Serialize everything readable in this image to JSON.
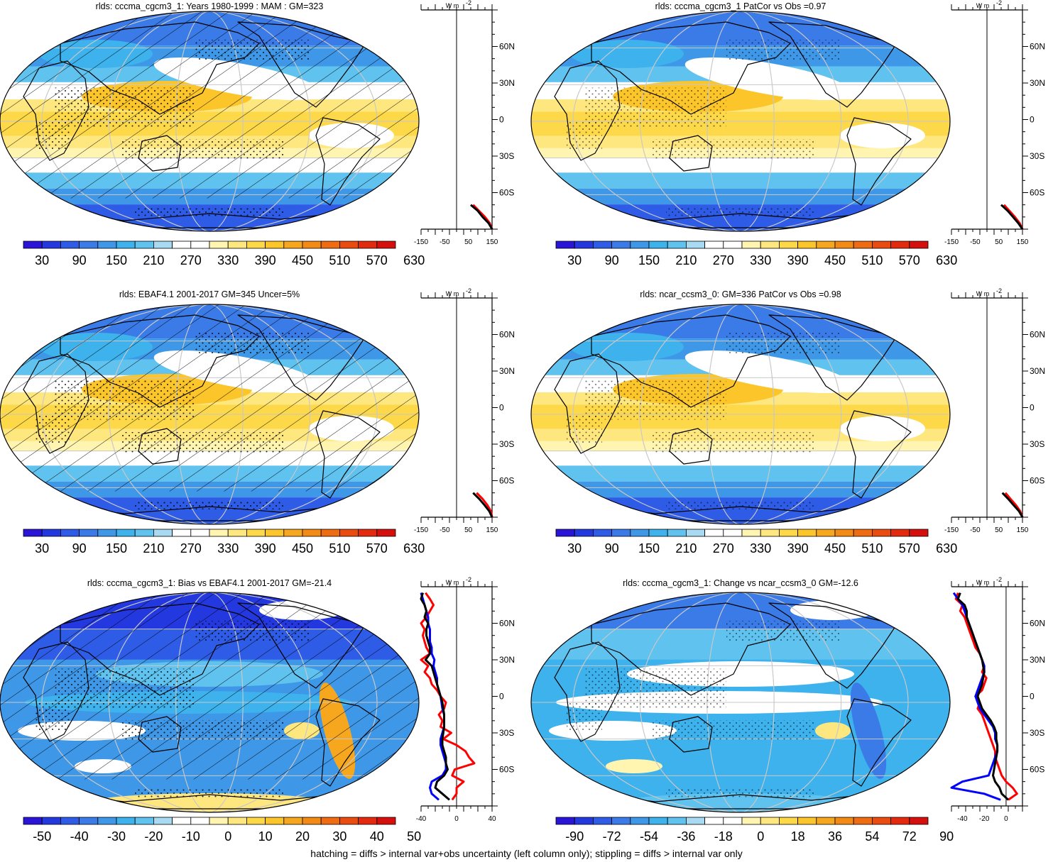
{
  "footer": "hatching = diffs > internal var+obs uncertainty (left column only); stippling = diffs > internal var only",
  "palette": {
    "abs": [
      "#2a14d8",
      "#2438e0",
      "#2e5ce6",
      "#3a7be8",
      "#3f97e8",
      "#3db2ec",
      "#60c2ee",
      "#a8daf2",
      "#ffffff",
      "#ffffff",
      "#fff4b0",
      "#ffe780",
      "#fdd94a",
      "#fcc52a",
      "#f7a71e",
      "#f38a16",
      "#ef6c12",
      "#ea4c10",
      "#e42a0e",
      "#d40f0c"
    ],
    "bias": [
      "#2a14d8",
      "#2438e0",
      "#2e5ce6",
      "#3a7be8",
      "#3f97e8",
      "#3db2ec",
      "#60c2ee",
      "#a8daf2",
      "#ffffff",
      "#ffffff",
      "#fff4b0",
      "#ffe780",
      "#fdd94a",
      "#fcc52a",
      "#f7a71e",
      "#f38a16",
      "#ef6c12",
      "#ea4c10",
      "#e42a0e",
      "#d40f0c"
    ]
  },
  "panels": [
    {
      "title": "rlds: cccma_cgcm3_1: Years 1980-1999 : MAM : GM=323",
      "pattern": "abs",
      "hatch": true,
      "stipple": "heavy",
      "colorbar_labels": [
        "30",
        "90",
        "150",
        "210",
        "270",
        "330",
        "390",
        "450",
        "510",
        "570",
        "630"
      ],
      "profile_ticks": [
        "-150",
        "-50",
        "50",
        "150"
      ],
      "profile_unit": "W m",
      "profile_unit_exp": "-2",
      "lat_labels": [
        "60N",
        "30N",
        "0",
        "30S",
        "60S"
      ],
      "chart_data": {
        "type": "line",
        "xlim": [
          -150,
          150
        ],
        "ylabel": "",
        "series": [
          {
            "color": "#ff0000",
            "lat": [
              -90,
              -85,
              -80,
              -75,
              -70
            ],
            "values": [
              150,
              140,
              120,
              95,
              70
            ]
          },
          {
            "color": "#000000",
            "lat": [
              -90,
              -85,
              -80,
              -75,
              -70
            ],
            "values": [
              150,
              135,
              110,
              90,
              60
            ]
          }
        ]
      }
    },
    {
      "title": "rlds: cccma_cgcm3_1 PatCor vs Obs =0.97",
      "pattern": "abs",
      "hatch": false,
      "stipple": "light",
      "colorbar_labels": [
        "30",
        "90",
        "150",
        "210",
        "270",
        "330",
        "390",
        "450",
        "510",
        "570",
        "630"
      ],
      "profile_ticks": [
        "-150",
        "-50",
        "50",
        "150"
      ],
      "profile_unit": "W m",
      "profile_unit_exp": "-2",
      "lat_labels": [
        "60N",
        "30N",
        "0",
        "30S",
        "60S"
      ],
      "chart_data": {
        "type": "line",
        "xlim": [
          -150,
          150
        ],
        "series": [
          {
            "color": "#ff0000",
            "lat": [
              -90,
              -85,
              -80,
              -75,
              -70
            ],
            "values": [
              150,
              138,
              118,
              95,
              72
            ]
          },
          {
            "color": "#000000",
            "lat": [
              -90,
              -85,
              -80,
              -75,
              -70
            ],
            "values": [
              150,
              132,
              110,
              88,
              60
            ]
          }
        ]
      }
    },
    {
      "title": "rlds: EBAF4.1 2001-2017 GM=345 Uncer=5%",
      "pattern": "abs",
      "hatch": true,
      "stipple": "heavy",
      "colorbar_labels": [
        "30",
        "90",
        "150",
        "210",
        "270",
        "330",
        "390",
        "450",
        "510",
        "570",
        "630"
      ],
      "profile_ticks": [
        "-150",
        "-50",
        "50",
        "150"
      ],
      "profile_unit": "W m",
      "profile_unit_exp": "-2",
      "lat_labels": [
        "60N",
        "30N",
        "0",
        "30S",
        "60S"
      ],
      "chart_data": {
        "type": "line",
        "xlim": [
          -150,
          150
        ],
        "series": [
          {
            "color": "#ff0000",
            "lat": [
              -90,
              -85,
              -80,
              -75,
              -70
            ],
            "values": [
              150,
              145,
              130,
              110,
              85
            ]
          },
          {
            "color": "#000000",
            "lat": [
              -90,
              -85,
              -80,
              -75,
              -70
            ],
            "values": [
              150,
              138,
              118,
              96,
              70
            ]
          }
        ]
      }
    },
    {
      "title": "rlds: ncar_ccsm3_0: GM=336 PatCor vs Obs =0.98",
      "pattern": "abs",
      "hatch": false,
      "stipple": "light",
      "colorbar_labels": [
        "30",
        "90",
        "150",
        "210",
        "270",
        "330",
        "390",
        "450",
        "510",
        "570",
        "630"
      ],
      "profile_ticks": [
        "-150",
        "-50",
        "50",
        "150"
      ],
      "profile_unit": "W m",
      "profile_unit_exp": "-2",
      "lat_labels": [
        "60N",
        "30N",
        "0",
        "30S",
        "60S"
      ],
      "chart_data": {
        "type": "line",
        "xlim": [
          -150,
          150
        ],
        "series": [
          {
            "color": "#ff0000",
            "lat": [
              -90,
              -85,
              -80,
              -75,
              -70
            ],
            "values": [
              150,
              140,
              122,
              100,
              78
            ]
          },
          {
            "color": "#000000",
            "lat": [
              -90,
              -85,
              -80,
              -75,
              -70
            ],
            "values": [
              150,
              135,
              112,
              90,
              65
            ]
          }
        ]
      }
    },
    {
      "title": "rlds: cccma_cgcm3_1: Bias vs EBAF4.1 2001-2017 GM=-21.4",
      "pattern": "bias",
      "hatch": true,
      "stipple": "heavy",
      "colorbar_labels": [
        "-50",
        "-40",
        "-30",
        "-20",
        "-10",
        "0",
        "10",
        "20",
        "30",
        "40",
        "50"
      ],
      "profile_ticks": [
        "-40",
        "0",
        "40"
      ],
      "profile_unit": "W m",
      "profile_unit_exp": "-2",
      "lat_labels": [
        "60N",
        "30N",
        "0",
        "30S",
        "60S"
      ],
      "chart_data": {
        "type": "line",
        "xlim": [
          -40,
          40
        ],
        "series": [
          {
            "color": "#ff0000",
            "lat": [
              85,
              80,
              75,
              70,
              65,
              60,
              55,
              50,
              45,
              40,
              35,
              30,
              25,
              20,
              15,
              10,
              5,
              0,
              -5,
              -10,
              -15,
              -20,
              -25,
              -30,
              -35,
              -40,
              -45,
              -50,
              -55,
              -60,
              -65,
              -70,
              -75,
              -80,
              -85
            ],
            "values": [
              -35,
              -30,
              -26,
              -30,
              -34,
              -40,
              -36,
              -38,
              -36,
              -34,
              -30,
              -40,
              -32,
              -36,
              -30,
              -28,
              -22,
              -18,
              -12,
              -14,
              -20,
              -16,
              -18,
              -6,
              -15,
              0,
              10,
              14,
              20,
              -2,
              -5,
              8,
              0,
              0,
              -5
            ]
          },
          {
            "color": "#0000ff",
            "lat": [
              85,
              80,
              75,
              70,
              65,
              60,
              55,
              50,
              45,
              40,
              35,
              30,
              25,
              20,
              15,
              10,
              5,
              0,
              -5,
              -10,
              -15,
              -20,
              -25,
              -30,
              -35,
              -40,
              -45,
              -50,
              -55,
              -60,
              -65,
              -70,
              -75,
              -80,
              -85
            ],
            "values": [
              -40,
              -38,
              -36,
              -34,
              -32,
              -32,
              -30,
              -30,
              -30,
              -28,
              -28,
              -25,
              -26,
              -24,
              -22,
              -22,
              -20,
              -18,
              -17,
              -16,
              -14,
              -14,
              -14,
              -16,
              -18,
              -18,
              -16,
              -14,
              -12,
              -12,
              -16,
              -28,
              -30,
              -28,
              -20
            ]
          },
          {
            "color": "#000000",
            "lat": [
              85,
              80,
              75,
              70,
              65,
              60,
              55,
              50,
              45,
              40,
              35,
              30,
              25,
              20,
              15,
              10,
              5,
              0,
              -5,
              -10,
              -15,
              -20,
              -25,
              -30,
              -35,
              -40,
              -45,
              -50,
              -55,
              -60,
              -65,
              -70,
              -75,
              -80,
              -85
            ],
            "values": [
              -38,
              -40,
              -36,
              -34,
              -36,
              -32,
              -34,
              -34,
              -32,
              -30,
              -30,
              -35,
              -28,
              -26,
              -24,
              -22,
              -20,
              -18,
              -16,
              -15,
              -14,
              -14,
              -14,
              -15,
              -16,
              -16,
              -14,
              -12,
              -12,
              -10,
              -14,
              -22,
              -24,
              -16,
              -8
            ]
          }
        ]
      }
    },
    {
      "title": "rlds: cccma_cgcm3_1: Change vs ncar_ccsm3_0 GM=-12.6",
      "pattern": "bias",
      "hatch": false,
      "stipple": "light",
      "colorbar_labels": [
        "-90",
        "-72",
        "-54",
        "-36",
        "-18",
        "0",
        "18",
        "36",
        "54",
        "72",
        "90"
      ],
      "profile_ticks": [
        "-40",
        "-20",
        "0"
      ],
      "profile_unit": "W m",
      "profile_unit_exp": "-2",
      "lat_labels": [
        "60N",
        "30N",
        "0",
        "30S",
        "60S"
      ],
      "chart_data": {
        "type": "line",
        "xlim": [
          -50,
          15
        ],
        "series": [
          {
            "color": "#ff0000",
            "lat": [
              85,
              80,
              75,
              70,
              65,
              60,
              55,
              50,
              45,
              40,
              35,
              30,
              25,
              20,
              15,
              10,
              5,
              0,
              -5,
              -10,
              -15,
              -20,
              -25,
              -30,
              -35,
              -40,
              -45,
              -50,
              -55,
              -60,
              -65,
              -70,
              -75,
              -80,
              -85
            ],
            "values": [
              -44,
              -46,
              -40,
              -42,
              -38,
              -36,
              -34,
              -32,
              -30,
              -28,
              -24,
              -22,
              -20,
              -22,
              -18,
              -20,
              -22,
              -28,
              -24,
              -26,
              -22,
              -20,
              -18,
              -16,
              -14,
              -12,
              -10,
              -10,
              -8,
              -6,
              -4,
              0,
              6,
              10,
              2
            ]
          },
          {
            "color": "#0000ff",
            "lat": [
              85,
              80,
              75,
              70,
              65,
              60,
              55,
              50,
              45,
              40,
              35,
              30,
              25,
              20,
              15,
              10,
              5,
              0,
              -5,
              -10,
              -15,
              -20,
              -25,
              -30,
              -35,
              -40,
              -45,
              -50,
              -55,
              -60,
              -65,
              -70,
              -75,
              -80,
              -85
            ],
            "values": [
              -48,
              -44,
              -40,
              -38,
              -36,
              -34,
              -32,
              -30,
              -28,
              -26,
              -24,
              -22,
              -20,
              -20,
              -22,
              -24,
              -26,
              -28,
              -26,
              -24,
              -20,
              -16,
              -12,
              -10,
              -10,
              -8,
              -8,
              -10,
              -12,
              -14,
              -16,
              -40,
              -50,
              -20,
              -5
            ]
          },
          {
            "color": "#000000",
            "lat": [
              85,
              80,
              75,
              70,
              65,
              60,
              55,
              50,
              45,
              40,
              35,
              30,
              25,
              20,
              15,
              10,
              5,
              0,
              -5,
              -10,
              -15,
              -20,
              -25,
              -30,
              -35,
              -40,
              -45,
              -50,
              -55,
              -60,
              -65,
              -70,
              -75,
              -80,
              -85
            ],
            "values": [
              -42,
              -44,
              -38,
              -36,
              -36,
              -34,
              -32,
              -30,
              -28,
              -26,
              -24,
              -22,
              -21,
              -20,
              -21,
              -22,
              -24,
              -26,
              -24,
              -22,
              -18,
              -14,
              -11,
              -9,
              -9,
              -8,
              -8,
              -9,
              -10,
              -11,
              -12,
              -10,
              -6,
              -4,
              2
            ]
          }
        ]
      }
    }
  ]
}
